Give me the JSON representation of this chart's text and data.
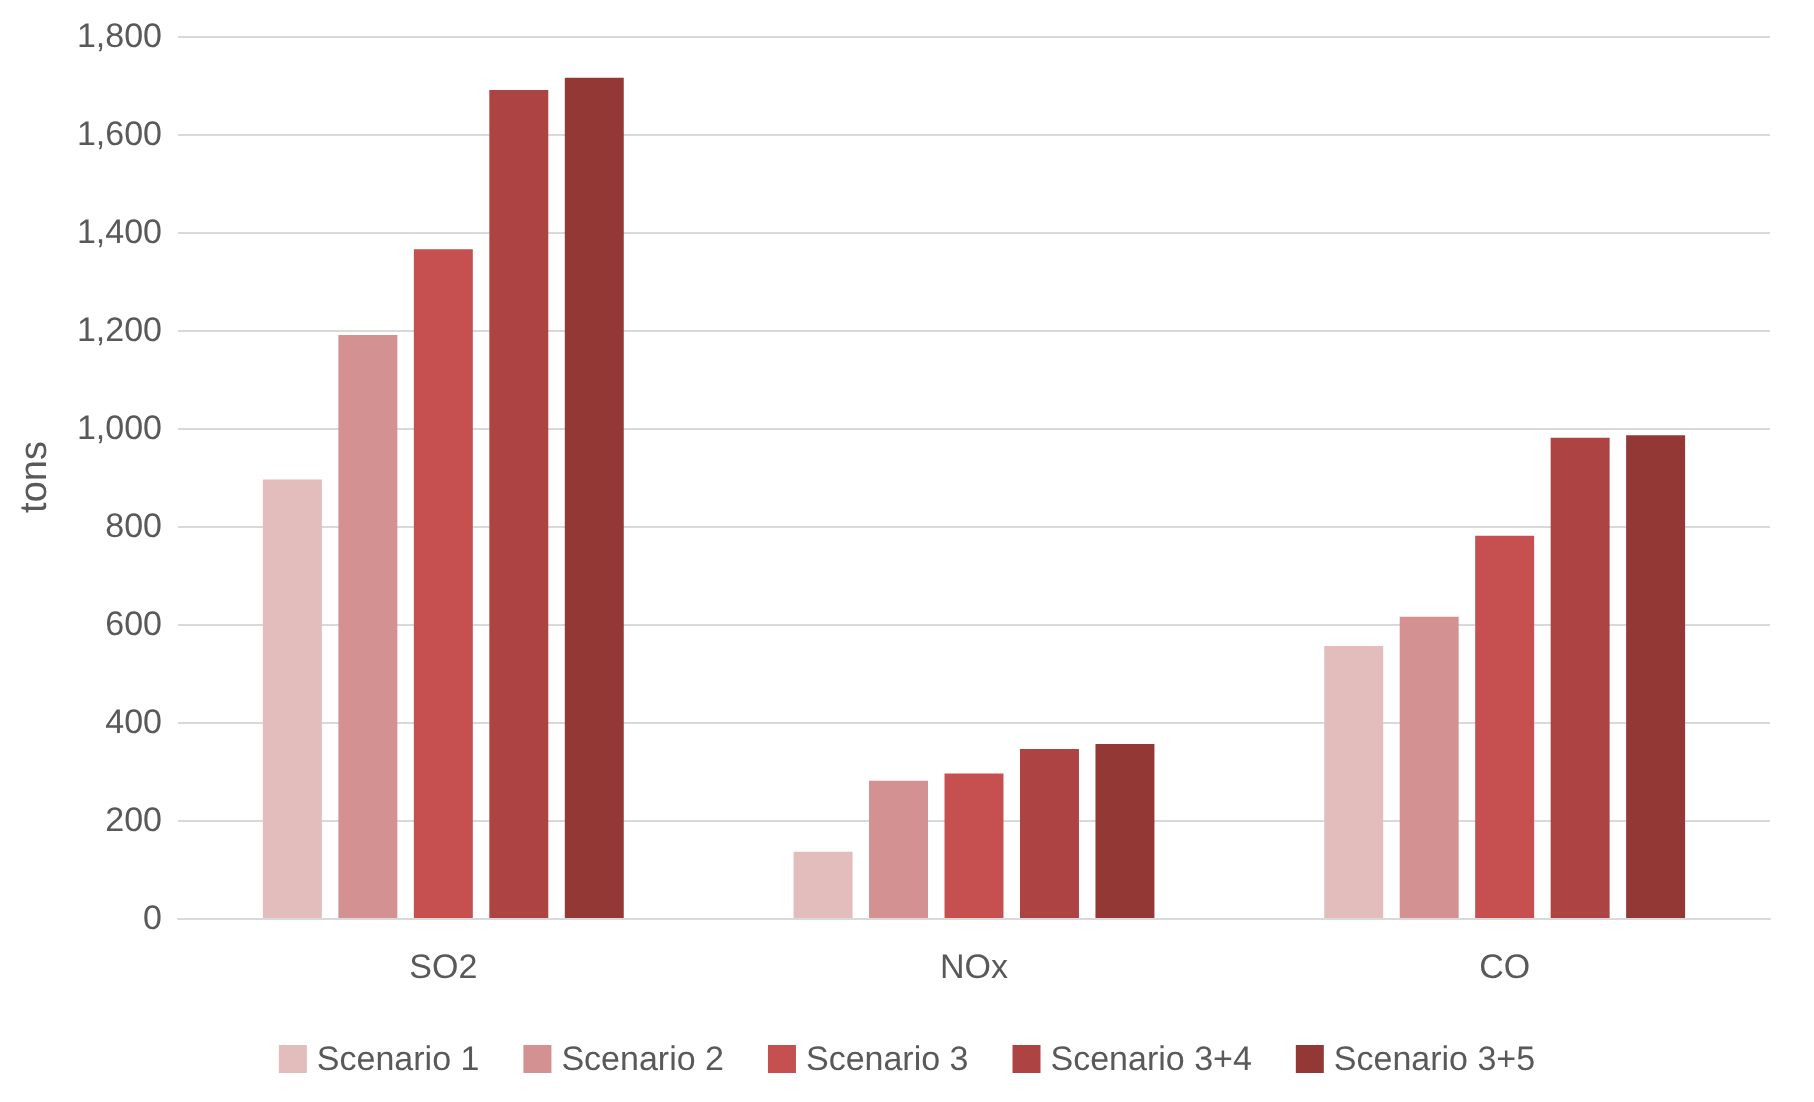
{
  "chart_data": {
    "type": "bar",
    "ylabel": "tons",
    "categories": [
      "SO2",
      "NOx",
      "CO"
    ],
    "series": [
      {
        "name": "Scenario 1",
        "color": "#e3bcbc",
        "values": [
          895,
          135,
          555
        ]
      },
      {
        "name": "Scenario 2",
        "color": "#d39291",
        "values": [
          1190,
          280,
          615
        ]
      },
      {
        "name": "Scenario 3",
        "color": "#c5504f",
        "values": [
          1365,
          295,
          780
        ]
      },
      {
        "name": "Scenario 3+4",
        "color": "#ad4443",
        "values": [
          1690,
          345,
          980
        ]
      },
      {
        "name": "Scenario 3+5",
        "color": "#943836",
        "values": [
          1715,
          355,
          985
        ]
      }
    ],
    "ylim": [
      0,
      1800
    ],
    "yticks": [
      0,
      200,
      400,
      600,
      800,
      {
        "value": 1000,
        "label": "1,000"
      },
      {
        "value": 1200,
        "label": "1,200"
      },
      {
        "value": 1400,
        "label": "1,400"
      },
      {
        "value": 1600,
        "label": "1,600"
      },
      {
        "value": 1800,
        "label": "1,800"
      }
    ],
    "grid": "y",
    "legend": "bottom"
  }
}
